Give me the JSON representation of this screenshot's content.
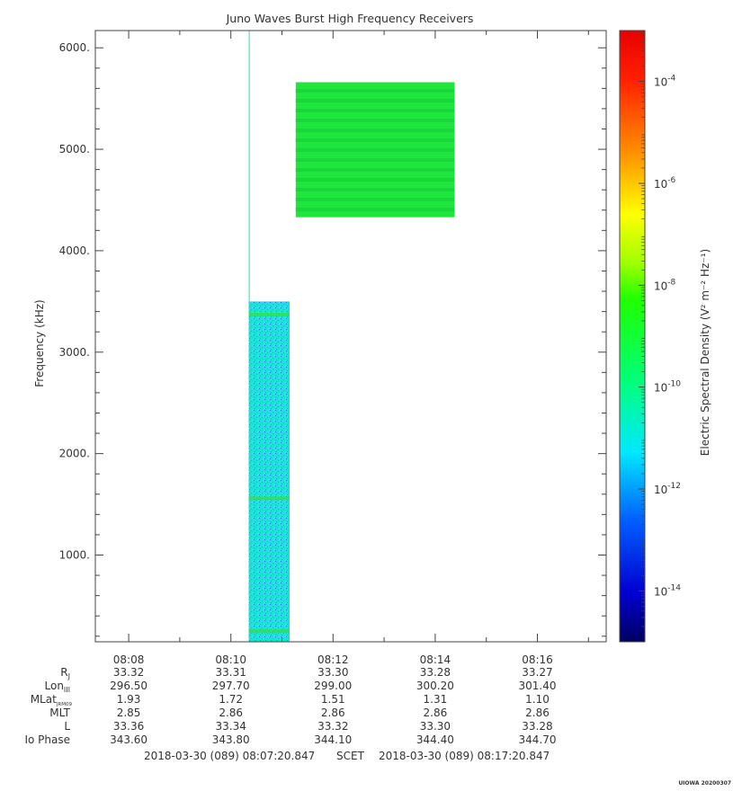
{
  "chart_data": {
    "type": "heatmap",
    "title": "Juno Waves Burst High Frequency Receivers",
    "ylabel": "Frequency (kHz)",
    "colorbar_label": "Electric Spectral Density (V² m⁻² Hz⁻¹)",
    "y_ticks": [
      "1000.",
      "2000.",
      "3000.",
      "4000.",
      "5000.",
      "6000."
    ],
    "y_tick_values": [
      1000,
      2000,
      3000,
      4000,
      5000,
      6000
    ],
    "ylim": [
      145,
      6170
    ],
    "x_ticks": [
      "08:08",
      "08:10",
      "08:12",
      "08:14",
      "08:16"
    ],
    "x_tick_minutes": [
      8,
      10,
      12,
      14,
      16
    ],
    "xlim_minutes": [
      7.347,
      17.347
    ],
    "colorbar_ticks": [
      {
        "base": "10",
        "exp": "-4",
        "value": -4
      },
      {
        "base": "10",
        "exp": "-6",
        "value": -6
      },
      {
        "base": "10",
        "exp": "-8",
        "value": -8
      },
      {
        "base": "10",
        "exp": "-10",
        "value": -10
      },
      {
        "base": "10",
        "exp": "-12",
        "value": -12
      },
      {
        "base": "10",
        "exp": "-14",
        "value": -14
      }
    ],
    "colorbar_range_log10": [
      -15,
      -3
    ],
    "colorbar_scale": "log",
    "colors": [
      "#00007f",
      "#0000ff",
      "#0080ff",
      "#00ffff",
      "#00ff00",
      "#80ff00",
      "#ffff00",
      "#ff8000",
      "#ff0000",
      "#e00000"
    ],
    "blocks": [
      {
        "name": "low-band",
        "t_start": 10.35,
        "t_end": 11.15,
        "f_start": 145,
        "f_end": 3500,
        "log10_density": -11.7,
        "color": "#19e6d2"
      },
      {
        "name": "high-band",
        "t_start": 11.27,
        "t_end": 14.38,
        "f_start": 4330,
        "f_end": 5660,
        "log10_density": -9.3,
        "color": "#1ee63c"
      },
      {
        "name": "spike",
        "t_start": 10.35,
        "t_end": 10.37,
        "f_start": 3500,
        "f_end": 6170,
        "log10_density": -11.5,
        "color": "#3ce6aa"
      }
    ],
    "bands": [
      {
        "t_start": 10.35,
        "t_end": 11.15,
        "f": 3370,
        "color": "#33dd66"
      },
      {
        "t_start": 10.35,
        "t_end": 11.15,
        "f": 1560,
        "color": "#33dd66"
      },
      {
        "t_start": 10.35,
        "t_end": 11.15,
        "f": 250,
        "color": "#33dd66"
      }
    ]
  },
  "ephemeris": {
    "labels": [
      {
        "main": "R",
        "sub": "J"
      },
      {
        "main": "Lon",
        "sub": "III"
      },
      {
        "main": "MLat",
        "sub": "JRM09"
      },
      {
        "main": "MLT",
        "sub": ""
      },
      {
        "main": "L",
        "sub": ""
      },
      {
        "main": "Io Phase",
        "sub": ""
      }
    ],
    "rows": [
      [
        "33.32",
        "33.31",
        "33.30",
        "33.28",
        "33.27"
      ],
      [
        "296.50",
        "297.70",
        "299.00",
        "300.20",
        "301.40"
      ],
      [
        "1.93",
        "1.72",
        "1.51",
        "1.31",
        "1.10"
      ],
      [
        "2.85",
        "2.86",
        "2.86",
        "2.86",
        "2.86"
      ],
      [
        "33.36",
        "33.34",
        "33.32",
        "33.30",
        "33.28"
      ],
      [
        "343.60",
        "343.80",
        "344.10",
        "344.40",
        "344.70"
      ]
    ]
  },
  "footer": {
    "start": "2018-03-30 (089) 08:07:20.847",
    "scet": "SCET",
    "end": "2018-03-30 (089) 08:17:20.847",
    "stamp": "UIOWA 20200307"
  }
}
